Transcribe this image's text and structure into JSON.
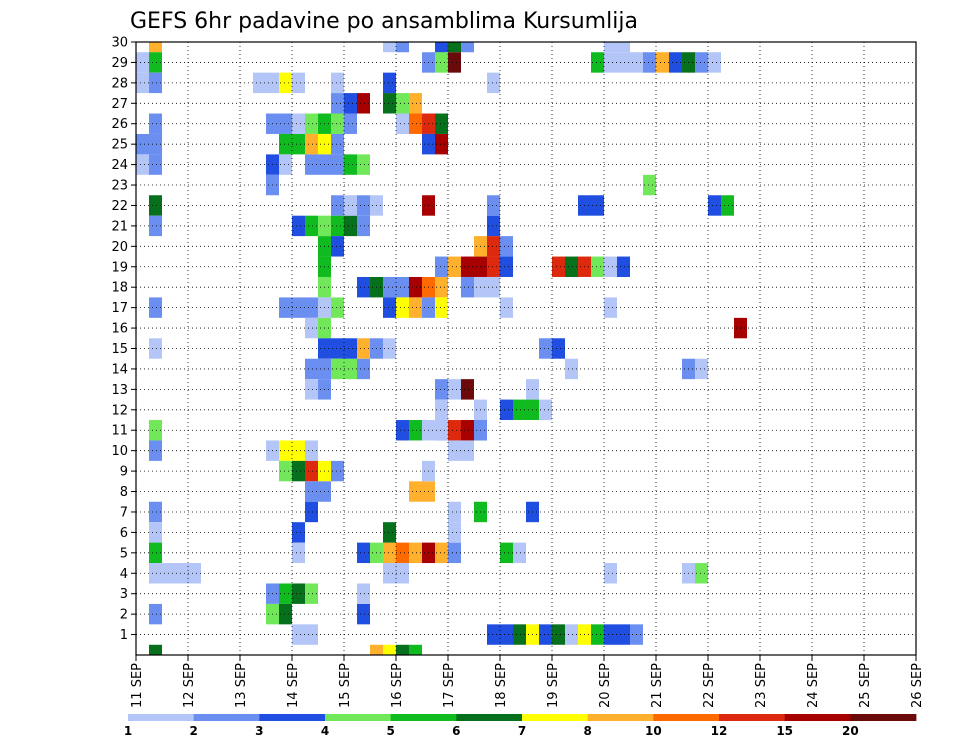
{
  "chart_data": {
    "type": "heatmap",
    "title": "GEFS 6hr padavine po ansamblima Kursumlija",
    "y_categories": [
      "1",
      "2",
      "3",
      "4",
      "5",
      "6",
      "7",
      "8",
      "9",
      "10",
      "11",
      "12",
      "13",
      "14",
      "15",
      "16",
      "17",
      "18",
      "19",
      "20",
      "21",
      "22",
      "23",
      "24",
      "25",
      "26",
      "27",
      "28",
      "29",
      "30"
    ],
    "x_tick_labels": [
      "11 SEP",
      "12 SEP",
      "13 SEP",
      "14 SEP",
      "15 SEP",
      "16 SEP",
      "17 SEP",
      "18 SEP",
      "19 SEP",
      "20 SEP",
      "21 SEP",
      "22 SEP",
      "23 SEP",
      "24 SEP",
      "25 SEP",
      "26 SEP"
    ],
    "x_unit": "6-hour steps from 11 SEP 00Z",
    "xlim": [
      0,
      60
    ],
    "ylim": [
      0,
      30
    ],
    "grid": true,
    "colorbar": {
      "tick_labels": [
        "1",
        "2",
        "3",
        "4",
        "5",
        "6",
        "7",
        "8",
        "10",
        "12",
        "15",
        "20"
      ],
      "colors": [
        "#b3c6f7",
        "#6b8ff0",
        "#1f4ee0",
        "#71e85a",
        "#0fbb1f",
        "#07701c",
        "#ffff00",
        "#ffb12e",
        "#ff6a00",
        "#dd2a0f",
        "#a60000",
        "#6a0a0a"
      ]
    },
    "cells": [
      [
        1.5,
        30,
        7
      ],
      [
        1.5,
        29,
        4
      ],
      [
        1.5,
        28,
        1
      ],
      [
        1.5,
        26,
        1
      ],
      [
        1.5,
        25,
        1
      ],
      [
        1.5,
        24,
        1
      ],
      [
        1.5,
        22,
        5
      ],
      [
        1.5,
        21,
        1
      ],
      [
        1.5,
        17,
        1
      ],
      [
        1.5,
        15,
        0
      ],
      [
        1.5,
        11,
        3
      ],
      [
        1.5,
        10,
        1
      ],
      [
        1.5,
        7,
        1
      ],
      [
        1.5,
        6,
        0
      ],
      [
        1.5,
        5,
        4
      ],
      [
        1.5,
        4,
        0
      ],
      [
        1.5,
        2,
        1
      ],
      [
        1.5,
        0,
        5
      ],
      [
        0.5,
        29,
        0
      ],
      [
        0.5,
        28,
        0
      ],
      [
        0.5,
        25,
        1
      ],
      [
        0.5,
        24,
        0
      ],
      [
        2.5,
        4,
        0
      ],
      [
        3.5,
        4,
        0
      ],
      [
        4.5,
        4,
        0
      ],
      [
        9.5,
        28,
        0
      ],
      [
        10.5,
        28,
        0
      ],
      [
        11.5,
        28,
        6
      ],
      [
        12.5,
        28,
        0
      ],
      [
        10.5,
        26,
        1
      ],
      [
        11.5,
        26,
        1
      ],
      [
        11.5,
        25,
        4
      ],
      [
        12.5,
        25,
        4
      ],
      [
        12.5,
        26,
        0
      ],
      [
        10.5,
        24,
        2
      ],
      [
        10.5,
        23,
        1
      ],
      [
        11.5,
        24,
        0
      ],
      [
        10.5,
        10,
        0
      ],
      [
        11.5,
        10,
        6
      ],
      [
        12.5,
        10,
        6
      ],
      [
        13.5,
        10,
        0
      ],
      [
        11.5,
        9,
        3
      ],
      [
        12.5,
        9,
        5
      ],
      [
        13.5,
        9,
        9
      ],
      [
        14.5,
        9,
        6
      ],
      [
        15.5,
        9,
        1
      ],
      [
        10.5,
        3,
        1
      ],
      [
        10.5,
        2,
        3
      ],
      [
        11.5,
        3,
        4
      ],
      [
        11.5,
        2,
        5
      ],
      [
        12.5,
        3,
        5
      ],
      [
        13.5,
        3,
        3
      ],
      [
        13.5,
        26,
        3
      ],
      [
        14.5,
        26,
        4
      ],
      [
        15.5,
        26,
        3
      ],
      [
        16.5,
        26,
        1
      ],
      [
        13.5,
        25,
        7
      ],
      [
        14.5,
        25,
        6
      ],
      [
        15.5,
        25,
        1
      ],
      [
        13.5,
        24,
        1
      ],
      [
        14.5,
        24,
        1
      ],
      [
        15.5,
        24,
        1
      ],
      [
        16.5,
        24,
        4
      ],
      [
        17.5,
        24,
        3
      ],
      [
        13.5,
        21,
        4
      ],
      [
        14.5,
        21,
        3
      ],
      [
        15.5,
        21,
        4
      ],
      [
        16.5,
        21,
        5
      ],
      [
        17.5,
        21,
        1
      ],
      [
        12.5,
        21,
        2
      ],
      [
        14.5,
        20,
        4
      ],
      [
        15.5,
        20,
        2
      ],
      [
        14.5,
        19,
        4
      ],
      [
        14.5,
        18,
        3
      ],
      [
        13.5,
        17,
        1
      ],
      [
        14.5,
        17,
        0
      ],
      [
        15.5,
        17,
        3
      ],
      [
        13.5,
        16,
        0
      ],
      [
        14.5,
        16,
        3
      ],
      [
        12.5,
        17,
        1
      ],
      [
        11.5,
        17,
        1
      ],
      [
        14.5,
        15,
        2
      ],
      [
        15.5,
        15,
        2
      ],
      [
        13.5,
        14,
        1
      ],
      [
        14.5,
        14,
        1
      ],
      [
        15.5,
        14,
        3
      ],
      [
        16.5,
        14,
        3
      ],
      [
        17.5,
        14,
        1
      ],
      [
        13.5,
        13,
        0
      ],
      [
        14.5,
        13,
        1
      ],
      [
        13.5,
        8,
        1
      ],
      [
        14.5,
        8,
        1
      ],
      [
        13.5,
        7,
        2
      ],
      [
        12.5,
        6,
        2
      ],
      [
        12.5,
        5,
        0
      ],
      [
        12.5,
        1,
        0
      ],
      [
        13.5,
        1,
        0
      ],
      [
        15.5,
        28,
        0
      ],
      [
        15.5,
        27,
        1
      ],
      [
        16.5,
        27,
        2
      ],
      [
        17.5,
        27,
        10
      ],
      [
        19.5,
        27,
        5
      ],
      [
        20.5,
        27,
        3
      ],
      [
        21.5,
        27,
        7
      ],
      [
        15.5,
        22,
        1
      ],
      [
        16.5,
        22,
        0
      ],
      [
        17.5,
        22,
        1
      ],
      [
        18.5,
        22,
        0
      ],
      [
        17.5,
        18,
        2
      ],
      [
        18.5,
        18,
        5
      ],
      [
        19.5,
        18,
        1
      ],
      [
        20.5,
        18,
        1
      ],
      [
        21.5,
        18,
        10
      ],
      [
        22.5,
        18,
        8
      ],
      [
        23.5,
        18,
        7
      ],
      [
        19.5,
        17,
        2
      ],
      [
        20.5,
        17,
        6
      ],
      [
        21.5,
        17,
        7
      ],
      [
        22.5,
        17,
        1
      ],
      [
        23.5,
        17,
        6
      ],
      [
        16.5,
        15,
        2
      ],
      [
        17.5,
        15,
        7
      ],
      [
        18.5,
        15,
        1
      ],
      [
        19.5,
        15,
        0
      ],
      [
        17.5,
        5,
        2
      ],
      [
        18.5,
        5,
        3
      ],
      [
        19.5,
        5,
        7
      ],
      [
        20.5,
        5,
        8
      ],
      [
        21.5,
        5,
        7
      ],
      [
        22.5,
        5,
        10
      ],
      [
        23.5,
        5,
        7
      ],
      [
        24.5,
        5,
        1
      ],
      [
        19.5,
        6,
        5
      ],
      [
        19.5,
        4,
        0
      ],
      [
        20.5,
        4,
        0
      ],
      [
        20.5,
        11,
        2
      ],
      [
        21.5,
        11,
        4
      ],
      [
        22.5,
        11,
        0
      ],
      [
        23.5,
        11,
        2
      ],
      [
        21.5,
        8,
        7
      ],
      [
        22.5,
        8,
        7
      ],
      [
        22.5,
        9,
        0
      ],
      [
        17.5,
        2,
        2
      ],
      [
        17.5,
        3,
        0
      ],
      [
        19.5,
        28,
        2
      ],
      [
        19.5,
        30,
        0
      ],
      [
        20.5,
        30,
        1
      ],
      [
        18.5,
        0,
        7
      ],
      [
        19.5,
        0,
        6
      ],
      [
        20.5,
        0,
        5
      ],
      [
        21.5,
        0,
        4
      ],
      [
        20.5,
        26,
        0
      ],
      [
        21.5,
        26,
        8
      ],
      [
        22.5,
        26,
        9
      ],
      [
        23.5,
        26,
        5
      ],
      [
        22.5,
        25,
        2
      ],
      [
        23.5,
        25,
        10
      ],
      [
        22.5,
        22,
        10
      ],
      [
        22.5,
        29,
        1
      ],
      [
        23.5,
        29,
        3
      ],
      [
        24.5,
        29,
        11
      ],
      [
        23.5,
        30,
        2
      ],
      [
        24.5,
        30,
        5
      ],
      [
        25.5,
        30,
        1
      ],
      [
        23.5,
        19,
        1
      ],
      [
        24.5,
        19,
        7
      ],
      [
        25.5,
        19,
        10
      ],
      [
        26.5,
        19,
        10
      ],
      [
        27.5,
        19,
        9
      ],
      [
        28.5,
        19,
        2
      ],
      [
        26.5,
        20,
        7
      ],
      [
        27.5,
        20,
        9
      ],
      [
        28.5,
        20,
        1
      ],
      [
        25.5,
        18,
        1
      ],
      [
        26.5,
        18,
        0
      ],
      [
        27.5,
        18,
        0
      ],
      [
        23.5,
        13,
        1
      ],
      [
        24.5,
        13,
        0
      ],
      [
        25.5,
        13,
        11
      ],
      [
        23.5,
        12,
        0
      ],
      [
        23.5,
        11,
        0
      ],
      [
        24.5,
        11,
        9
      ],
      [
        25.5,
        11,
        10
      ],
      [
        26.5,
        11,
        5
      ],
      [
        24.5,
        10,
        0
      ],
      [
        25.5,
        10,
        0
      ],
      [
        24.5,
        6,
        0
      ],
      [
        24.5,
        7,
        0
      ],
      [
        26.5,
        7,
        4
      ],
      [
        27.5,
        21,
        2
      ],
      [
        27.5,
        22,
        1
      ],
      [
        27.5,
        28,
        0
      ],
      [
        26.5,
        11,
        1
      ],
      [
        26.5,
        12,
        0
      ],
      [
        28.5,
        17,
        0
      ],
      [
        28.5,
        12,
        2
      ],
      [
        29.5,
        12,
        4
      ],
      [
        30.5,
        12,
        4
      ],
      [
        31.5,
        12,
        0
      ],
      [
        28.5,
        5,
        4
      ],
      [
        29.5,
        5,
        0
      ],
      [
        30.5,
        7,
        2
      ],
      [
        30.5,
        13,
        0
      ],
      [
        31.5,
        15,
        1
      ],
      [
        32.5,
        15,
        2
      ],
      [
        33.5,
        14,
        0
      ],
      [
        27.5,
        1,
        2
      ],
      [
        28.5,
        1,
        2
      ],
      [
        29.5,
        1,
        5
      ],
      [
        30.5,
        1,
        6
      ],
      [
        31.5,
        1,
        2
      ],
      [
        32.5,
        1,
        5
      ],
      [
        33.5,
        1,
        0
      ],
      [
        34.5,
        1,
        6
      ],
      [
        35.5,
        1,
        4
      ],
      [
        36.5,
        1,
        2
      ],
      [
        37.5,
        1,
        2
      ],
      [
        38.5,
        1,
        1
      ],
      [
        32.5,
        19,
        9
      ],
      [
        33.5,
        19,
        5
      ],
      [
        34.5,
        19,
        9
      ],
      [
        35.5,
        19,
        3
      ],
      [
        36.5,
        19,
        0
      ],
      [
        37.5,
        19,
        2
      ],
      [
        34.5,
        22,
        2
      ],
      [
        35.5,
        22,
        2
      ],
      [
        36.5,
        30,
        0
      ],
      [
        37.5,
        30,
        0
      ],
      [
        36.5,
        29,
        0
      ],
      [
        37.5,
        29,
        0
      ],
      [
        35.5,
        29,
        4
      ],
      [
        36.5,
        17,
        0
      ],
      [
        36.5,
        4,
        0
      ],
      [
        38.5,
        29,
        0
      ],
      [
        39.5,
        29,
        1
      ],
      [
        40.5,
        29,
        7
      ],
      [
        41.5,
        29,
        2
      ],
      [
        42.5,
        29,
        5
      ],
      [
        43.5,
        29,
        1
      ],
      [
        44.5,
        29,
        0
      ],
      [
        39.5,
        23,
        3
      ],
      [
        42.5,
        14,
        1
      ],
      [
        43.5,
        14,
        0
      ],
      [
        42.5,
        4,
        0
      ],
      [
        43.5,
        4,
        3
      ],
      [
        44.5,
        22,
        2
      ],
      [
        45.5,
        22,
        4
      ],
      [
        46.5,
        16,
        10
      ]
    ]
  },
  "plot_frame": {
    "border_color": "#000000",
    "grid_color": "#000000"
  }
}
